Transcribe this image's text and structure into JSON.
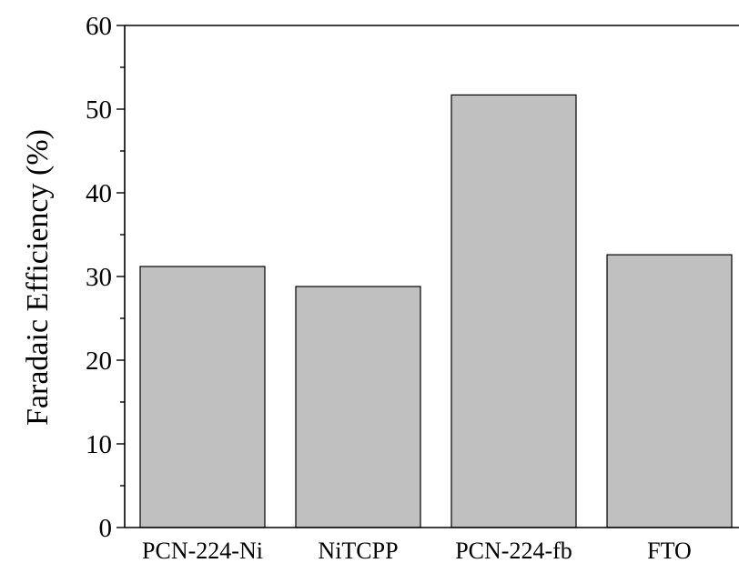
{
  "chart_data": {
    "type": "bar",
    "title": "",
    "xlabel": "",
    "ylabel": "Faradaic Efficiency (%)",
    "categories": [
      "PCN-224-Ni",
      "NiTCPP",
      "PCN-224-fb",
      "FTO"
    ],
    "values": [
      31.2,
      28.8,
      51.7,
      32.6
    ],
    "ylim": [
      0,
      60
    ],
    "yticks": [
      0,
      10,
      20,
      30,
      40,
      50,
      60
    ],
    "yminor_step": 5,
    "grid": false,
    "legend": "none",
    "colors": {
      "bar_fill": "#c0c0c0",
      "bar_stroke": "#000000",
      "axis": "#000000"
    }
  }
}
